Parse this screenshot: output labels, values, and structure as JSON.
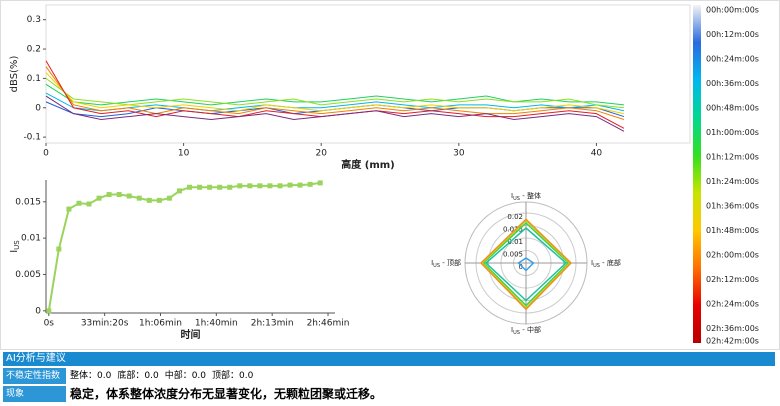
{
  "chart_data": [
    {
      "type": "line",
      "ylabel": "dBS(%)",
      "xlabel": "高度 (mm)",
      "x": [
        0,
        2,
        4,
        6,
        8,
        10,
        12,
        14,
        16,
        18,
        20,
        22,
        24,
        26,
        28,
        30,
        32,
        34,
        36,
        38,
        40,
        42
      ],
      "series": [
        {
          "color": "#1f5fd8",
          "values": [
            0.02,
            -0.02,
            -0.03,
            -0.02,
            0.0,
            -0.01,
            -0.02,
            -0.01,
            0.0,
            -0.02,
            -0.01,
            0.0,
            0.01,
            0.0,
            -0.01,
            0.0,
            0.0,
            -0.01,
            0.0,
            0.0,
            0.0,
            -0.03
          ]
        },
        {
          "color": "#00b7e8",
          "values": [
            0.05,
            0.0,
            -0.01,
            0.0,
            0.01,
            0.0,
            -0.01,
            0.0,
            0.01,
            0.0,
            0.0,
            0.01,
            0.02,
            0.01,
            0.0,
            0.01,
            0.01,
            0.0,
            0.01,
            0.0,
            0.01,
            -0.01
          ]
        },
        {
          "color": "#20d060",
          "values": [
            0.08,
            0.02,
            0.01,
            0.02,
            0.03,
            0.02,
            0.01,
            0.02,
            0.03,
            0.02,
            0.02,
            0.03,
            0.04,
            0.03,
            0.02,
            0.03,
            0.04,
            0.02,
            0.03,
            0.02,
            0.02,
            0.01
          ]
        },
        {
          "color": "#8ee020",
          "values": [
            0.1,
            0.03,
            0.02,
            0.01,
            0.02,
            0.03,
            0.02,
            0.01,
            0.02,
            0.03,
            0.01,
            0.02,
            0.03,
            0.02,
            0.03,
            0.02,
            0.03,
            0.02,
            0.02,
            0.03,
            0.01,
            0.0
          ]
        },
        {
          "color": "#f0d000",
          "values": [
            0.12,
            0.02,
            0.0,
            0.01,
            0.0,
            0.01,
            0.0,
            -0.01,
            0.01,
            0.0,
            -0.01,
            0.0,
            0.01,
            0.0,
            0.01,
            0.0,
            0.0,
            -0.01,
            0.0,
            0.01,
            0.0,
            -0.02
          ]
        },
        {
          "color": "#f08000",
          "values": [
            0.14,
            0.01,
            -0.01,
            0.0,
            -0.02,
            0.0,
            -0.01,
            -0.02,
            0.0,
            -0.01,
            -0.02,
            -0.01,
            0.0,
            -0.01,
            0.0,
            -0.01,
            -0.02,
            -0.02,
            -0.01,
            0.0,
            -0.01,
            -0.04
          ]
        },
        {
          "color": "#e02020",
          "values": [
            0.16,
            0.0,
            -0.02,
            -0.01,
            -0.03,
            -0.01,
            -0.02,
            -0.03,
            -0.01,
            -0.02,
            -0.03,
            -0.02,
            -0.01,
            -0.02,
            -0.01,
            -0.02,
            -0.03,
            -0.03,
            -0.02,
            -0.01,
            -0.02,
            -0.07
          ]
        },
        {
          "color": "#7a2a80",
          "values": [
            0.04,
            -0.02,
            -0.04,
            -0.03,
            -0.02,
            -0.03,
            -0.04,
            -0.03,
            -0.02,
            -0.04,
            -0.03,
            -0.02,
            -0.01,
            -0.03,
            -0.02,
            -0.03,
            -0.02,
            -0.04,
            -0.03,
            -0.02,
            -0.03,
            -0.08
          ]
        }
      ],
      "xlim": [
        0,
        46.8
      ],
      "xticks": [
        0,
        10,
        20,
        30,
        40
      ],
      "ylim": [
        -0.12,
        0.35
      ],
      "yticks": [
        0.3,
        0.2,
        0.1,
        0,
        -0.1
      ],
      "colorbar": {
        "colors": [
          "#f4f4f4",
          "#2a6ae0",
          "#00b8f0",
          "#00d890",
          "#30e020",
          "#c8e400",
          "#ffc800",
          "#ff7000",
          "#e80000",
          "#b80000"
        ],
        "labels": [
          "00h:00m:00s",
          "00h:12m:00s",
          "00h:24m:00s",
          "00h:36m:00s",
          "00h:48m:00s",
          "01h:00m:00s",
          "01h:12m:00s",
          "01h:24m:00s",
          "01h:36m:00s",
          "01h:48m:00s",
          "02h:00m:00s",
          "02h:12m:00s",
          "02h:24m:00s",
          "02h:36m:00s",
          "02h:42m:00s"
        ]
      }
    },
    {
      "type": "line",
      "ylabel": "I",
      "ylabel_sub": "US",
      "xlabel": "时间",
      "markers": true,
      "x": [
        0,
        360,
        720,
        1080,
        1440,
        1800,
        2160,
        2520,
        2880,
        3240,
        3600,
        3960,
        4320,
        4680,
        5040,
        5400,
        5760,
        6120,
        6480,
        6840,
        7200,
        7560,
        7920,
        8280,
        8640,
        9000,
        9360,
        9720
      ],
      "series": [
        {
          "color": "#9ad45c",
          "values": [
            0,
            0.0085,
            0.014,
            0.0148,
            0.0147,
            0.0155,
            0.016,
            0.016,
            0.0158,
            0.0155,
            0.0152,
            0.0152,
            0.0155,
            0.0165,
            0.017,
            0.017,
            0.017,
            0.017,
            0.017,
            0.0172,
            0.0172,
            0.0172,
            0.0172,
            0.0172,
            0.0173,
            0.0173,
            0.0174,
            0.0176
          ]
        }
      ],
      "xlim": [
        -100,
        10250
      ],
      "xticks": [
        {
          "value": 0,
          "label": "0s"
        },
        {
          "value": 2000,
          "label": "33min:20s"
        },
        {
          "value": 4000,
          "label": "1h:06min"
        },
        {
          "value": 6000,
          "label": "1h:40min"
        },
        {
          "value": 8000,
          "label": "2h:13min"
        },
        {
          "value": 10000,
          "label": "2h:46min"
        }
      ],
      "ylim": [
        -0.0003,
        0.018
      ],
      "yticks": [
        0,
        0.005,
        0.01,
        0.015
      ]
    },
    {
      "type": "radar",
      "axes": [
        {
          "symbol": "I",
          "sub": "US",
          "name": " - 整体"
        },
        {
          "symbol": "I",
          "sub": "US",
          "name": " - 底部"
        },
        {
          "symbol": "I",
          "sub": "US",
          "name": " - 中部"
        },
        {
          "symbol": "I",
          "sub": "US",
          "name": " - 顶部"
        }
      ],
      "rlim": [
        0,
        0.02
      ],
      "rticks": [
        0.02,
        0.015,
        0.01,
        0.005,
        0
      ],
      "series": [
        {
          "color": "#3aa0e8",
          "values": [
            0.002,
            0.003,
            0.003,
            0.003
          ]
        },
        {
          "color": "#20c0a0",
          "values": [
            0.014,
            0.016,
            0.015,
            0.016
          ]
        },
        {
          "color": "#40d040",
          "values": [
            0.016,
            0.017,
            0.017,
            0.017
          ]
        },
        {
          "color": "#b8d820",
          "values": [
            0.017,
            0.0175,
            0.018,
            0.0175
          ]
        },
        {
          "color": "#f09020",
          "values": [
            0.0175,
            0.018,
            0.0185,
            0.018
          ]
        }
      ]
    }
  ],
  "panel": {
    "title": "AI分析与建议",
    "rows": [
      {
        "label": "不稳定性指数",
        "items": [
          {
            "name": "整体：",
            "value": "0.0"
          },
          {
            "name": "底部：",
            "value": "0.0"
          },
          {
            "name": "中部：",
            "value": "0.0"
          },
          {
            "name": "顶部：",
            "value": "0.0"
          }
        ]
      },
      {
        "label": "现象",
        "text": "稳定，体系整体浓度分布无显著变化，无颗粒团聚或迁移。"
      }
    ]
  }
}
